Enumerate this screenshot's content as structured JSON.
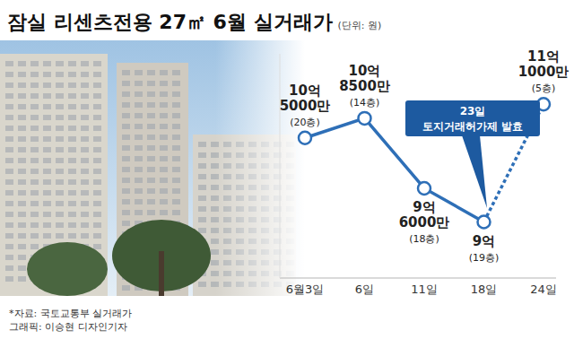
{
  "chart_data": {
    "type": "line",
    "title": "잠실 리센츠전용 27㎡ 6월 실거래가",
    "subtitle": "(단위: 원)",
    "categories": [
      "6월3일",
      "6일",
      "11일",
      "18일",
      "24일"
    ],
    "values": [
      1050000000,
      1085000000,
      960000000,
      900000000,
      1110000000
    ],
    "value_labels": [
      "10억 5000만",
      "10억 8500만",
      "9억 6000만",
      "9억",
      "11억 1000만"
    ],
    "floors": [
      "(20층)",
      "(14층)",
      "(18층)",
      "(19층)",
      "(5층)"
    ],
    "color": "#2e6fb7",
    "marker": "circle",
    "line_style": "solid",
    "data_labels": true,
    "tick_labels": "x",
    "ylim": [
      800000000,
      1200000000
    ],
    "annotation": {
      "text": "23일 토지거래허가제 발효",
      "after": "18일",
      "line_style": "dotted"
    },
    "source": "*자료: 국토교통부 실거래가",
    "credit": "그래픽: 이승현 디자인기자"
  }
}
